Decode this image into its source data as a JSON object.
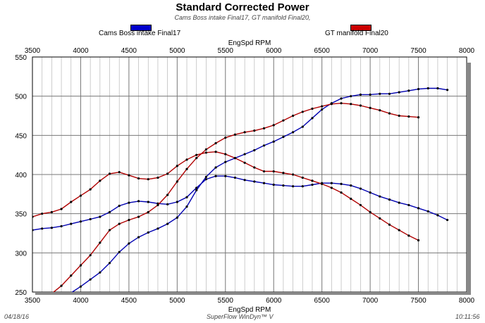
{
  "chart_data": {
    "type": "line",
    "title": "Standard Corrected Power",
    "subtitle": "Cams Boss intake Final17, GT manifold Final20,",
    "xlabel": "EngSpd RPM",
    "ylabel": "",
    "xlim": [
      3500,
      8000
    ],
    "ylim": [
      250,
      550
    ],
    "x_ticks": [
      3500,
      4000,
      4500,
      5000,
      5500,
      6000,
      6500,
      7000,
      7500,
      8000
    ],
    "y_ticks": [
      250,
      300,
      350,
      400,
      450,
      500,
      550
    ],
    "legend_position": "top",
    "grid": true,
    "series": [
      {
        "name": "Cams Boss intake Final17",
        "color": "#0000b0",
        "curves": [
          {
            "x": [
              3500,
              3600,
              3700,
              3800,
              3900,
              4000,
              4100,
              4200,
              4300,
              4400,
              4500,
              4600,
              4700,
              4800,
              4900,
              5000,
              5100,
              5200,
              5300,
              5400,
              5500,
              5600,
              5700,
              5800,
              5900,
              6000,
              6100,
              6200,
              6300,
              6400,
              6500,
              6600,
              6700,
              6800,
              6900,
              7000,
              7100,
              7200,
              7300,
              7400,
              7500,
              7600,
              7700,
              7800
            ],
            "y": [
              329,
              331,
              332,
              334,
              337,
              340,
              343,
              346,
              352,
              360,
              364,
              366,
              365,
              363,
              362,
              365,
              371,
              383,
              394,
              398,
              398,
              396,
              393,
              391,
              389,
              387,
              386,
              385,
              385,
              387,
              389,
              389,
              388,
              386,
              382,
              377,
              372,
              368,
              364,
              361,
              357,
              353,
              348,
              342
            ]
          },
          {
            "x": [
              3700,
              3800,
              3900,
              4000,
              4100,
              4200,
              4300,
              4400,
              4500,
              4600,
              4700,
              4800,
              4900,
              5000,
              5100,
              5200,
              5300,
              5400,
              5500,
              5600,
              5700,
              5800,
              5900,
              6000,
              6100,
              6200,
              6300,
              6400,
              6500,
              6600,
              6700,
              6800,
              6900,
              7000,
              7100,
              7200,
              7300,
              7400,
              7500,
              7600,
              7700,
              7800
            ],
            "y": [
              240,
              245,
              249,
              257,
              266,
              275,
              287,
              301,
              312,
              320,
              326,
              331,
              337,
              345,
              359,
              380,
              397,
              409,
              416,
              421,
              426,
              431,
              437,
              442,
              448,
              454,
              461,
              472,
              483,
              491,
              497,
              500,
              502,
              502,
              503,
              503,
              505,
              507,
              509,
              510,
              510,
              508
            ]
          }
        ]
      },
      {
        "name": "GT manifold Final20",
        "color": "#b00000",
        "curves": [
          {
            "x": [
              3500,
              3600,
              3700,
              3800,
              3900,
              4000,
              4100,
              4200,
              4300,
              4400,
              4500,
              4600,
              4700,
              4800,
              4900,
              5000,
              5100,
              5200,
              5300,
              5400,
              5500,
              5600,
              5700,
              5800,
              5900,
              6000,
              6100,
              6200,
              6300,
              6400,
              6500,
              6600,
              6700,
              6800,
              6900,
              7000,
              7100,
              7200,
              7300,
              7400,
              7500
            ],
            "y": [
              346,
              350,
              352,
              356,
              365,
              373,
              381,
              392,
              401,
              403,
              399,
              395,
              394,
              396,
              401,
              411,
              419,
              425,
              428,
              429,
              426,
              421,
              415,
              409,
              404,
              404,
              402,
              400,
              396,
              392,
              388,
              383,
              377,
              369,
              361,
              352,
              344,
              336,
              329,
              322,
              316
            ]
          },
          {
            "x": [
              3500,
              3600,
              3700,
              3800,
              3900,
              4000,
              4100,
              4200,
              4300,
              4400,
              4500,
              4600,
              4700,
              4800,
              4900,
              5000,
              5100,
              5200,
              5300,
              5400,
              5500,
              5600,
              5700,
              5800,
              5900,
              6000,
              6100,
              6200,
              6300,
              6400,
              6500,
              6600,
              6700,
              6800,
              6900,
              7000,
              7100,
              7200,
              7300,
              7400,
              7500
            ],
            "y": [
              225,
              235,
              248,
              258,
              271,
              284,
              297,
              313,
              329,
              337,
              342,
              346,
              352,
              361,
              374,
              391,
              407,
              421,
              432,
              440,
              447,
              451,
              454,
              456,
              459,
              463,
              469,
              475,
              480,
              484,
              487,
              490,
              491,
              490,
              488,
              485,
              482,
              478,
              475,
              474,
              473
            ]
          }
        ]
      }
    ]
  },
  "legend": [
    {
      "label": "Cams Boss intake Final17",
      "color": "#0000cc"
    },
    {
      "label": "GT manifold Final20",
      "color": "#cc0000"
    }
  ],
  "footer": {
    "date": "04/18/16",
    "software": "SuperFlow WinDyn™ V",
    "time": "10:11:56"
  }
}
